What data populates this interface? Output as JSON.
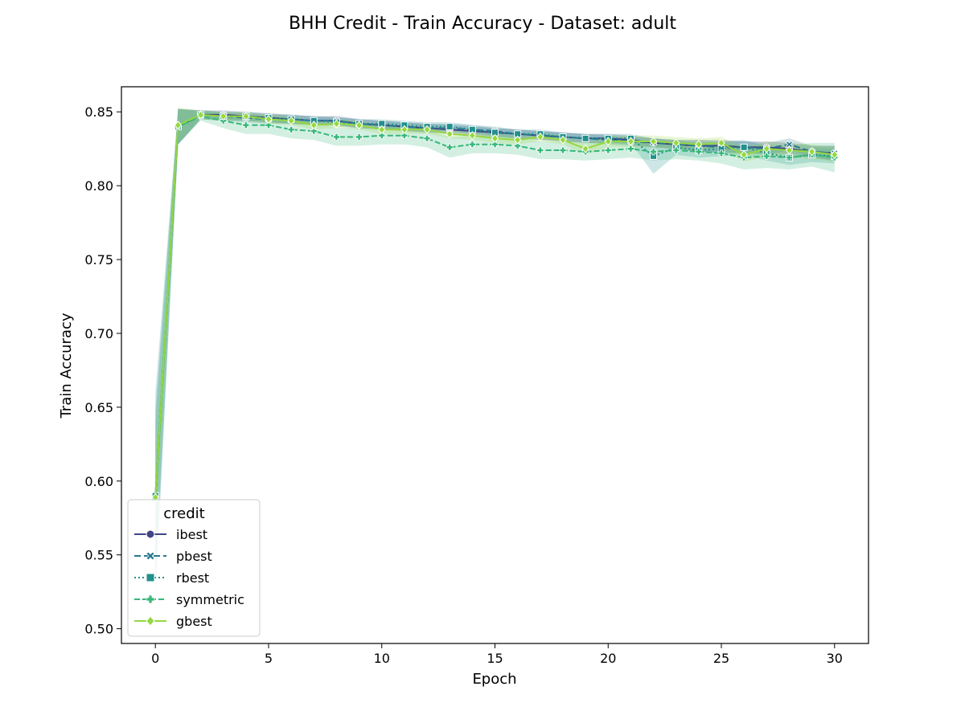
{
  "chart_data": {
    "type": "line",
    "title": "BHH Credit - Train Accuracy - Dataset: adult",
    "xlabel": "Epoch",
    "ylabel": "Train Accuracy",
    "xlim": [
      -1.5,
      31.5
    ],
    "ylim": [
      0.49,
      0.867
    ],
    "xticks": [
      0,
      5,
      10,
      15,
      20,
      25,
      30
    ],
    "yticks": [
      0.5,
      0.55,
      0.6,
      0.65,
      0.7,
      0.75,
      0.8,
      0.85
    ],
    "grid": false,
    "legend": {
      "title": "credit",
      "position": "lower-left"
    },
    "x": [
      0,
      1,
      2,
      3,
      4,
      5,
      6,
      7,
      8,
      9,
      10,
      11,
      12,
      13,
      14,
      15,
      16,
      17,
      18,
      19,
      20,
      21,
      22,
      23,
      24,
      25,
      26,
      27,
      28,
      29,
      30
    ],
    "series": [
      {
        "name": "ibest",
        "color": "#414487",
        "dash": "",
        "marker": "circle",
        "values": [
          0.589,
          0.84,
          0.848,
          0.848,
          0.847,
          0.846,
          0.845,
          0.844,
          0.844,
          0.842,
          0.841,
          0.84,
          0.839,
          0.838,
          0.837,
          0.836,
          0.835,
          0.834,
          0.833,
          0.832,
          0.832,
          0.831,
          0.829,
          0.828,
          0.827,
          0.827,
          0.826,
          0.826,
          0.825,
          0.823,
          0.822
        ],
        "band": [
          0.01,
          0.012,
          0.003,
          0.003,
          0.003,
          0.003,
          0.003,
          0.003,
          0.003,
          0.003,
          0.003,
          0.003,
          0.003,
          0.003,
          0.003,
          0.003,
          0.003,
          0.003,
          0.003,
          0.003,
          0.003,
          0.003,
          0.003,
          0.003,
          0.004,
          0.004,
          0.004,
          0.004,
          0.004,
          0.004,
          0.005
        ]
      },
      {
        "name": "pbest",
        "color": "#2a788e",
        "dash": "8,4",
        "marker": "x",
        "values": [
          0.588,
          0.84,
          0.848,
          0.847,
          0.846,
          0.845,
          0.845,
          0.844,
          0.844,
          0.842,
          0.841,
          0.84,
          0.839,
          0.839,
          0.838,
          0.837,
          0.835,
          0.834,
          0.833,
          0.832,
          0.831,
          0.83,
          0.829,
          0.828,
          0.827,
          0.826,
          0.826,
          0.825,
          0.828,
          0.823,
          0.822
        ],
        "band": [
          0.06,
          0.012,
          0.003,
          0.003,
          0.003,
          0.003,
          0.003,
          0.003,
          0.003,
          0.003,
          0.003,
          0.003,
          0.003,
          0.003,
          0.003,
          0.003,
          0.003,
          0.003,
          0.003,
          0.003,
          0.003,
          0.003,
          0.003,
          0.003,
          0.004,
          0.004,
          0.004,
          0.004,
          0.004,
          0.004,
          0.005
        ]
      },
      {
        "name": "rbest",
        "color": "#21918c",
        "dash": "2,3",
        "marker": "square",
        "values": [
          0.59,
          0.84,
          0.848,
          0.847,
          0.847,
          0.846,
          0.845,
          0.844,
          0.843,
          0.842,
          0.842,
          0.841,
          0.84,
          0.84,
          0.838,
          0.836,
          0.835,
          0.835,
          0.833,
          0.832,
          0.832,
          0.832,
          0.82,
          0.826,
          0.824,
          0.825,
          0.826,
          0.822,
          0.819,
          0.821,
          0.82
        ],
        "band": [
          0.07,
          0.012,
          0.003,
          0.003,
          0.003,
          0.003,
          0.003,
          0.003,
          0.003,
          0.003,
          0.003,
          0.003,
          0.003,
          0.003,
          0.003,
          0.003,
          0.003,
          0.003,
          0.003,
          0.003,
          0.003,
          0.003,
          0.012,
          0.005,
          0.005,
          0.005,
          0.005,
          0.005,
          0.005,
          0.005,
          0.005
        ]
      },
      {
        "name": "symmetric",
        "color": "#35b779",
        "dash": "7,3",
        "marker": "plus",
        "values": [
          0.588,
          0.84,
          0.847,
          0.844,
          0.841,
          0.841,
          0.838,
          0.837,
          0.833,
          0.833,
          0.834,
          0.834,
          0.832,
          0.826,
          0.828,
          0.828,
          0.827,
          0.824,
          0.824,
          0.823,
          0.824,
          0.825,
          0.823,
          0.824,
          0.823,
          0.822,
          0.819,
          0.82,
          0.819,
          0.821,
          0.819
        ],
        "band": [
          0.05,
          0.012,
          0.003,
          0.005,
          0.006,
          0.006,
          0.006,
          0.006,
          0.006,
          0.006,
          0.006,
          0.006,
          0.006,
          0.007,
          0.006,
          0.006,
          0.006,
          0.006,
          0.006,
          0.006,
          0.006,
          0.006,
          0.006,
          0.006,
          0.006,
          0.007,
          0.008,
          0.008,
          0.008,
          0.008,
          0.01
        ]
      },
      {
        "name": "gbest",
        "color": "#95d840",
        "dash": "",
        "marker": "diamond",
        "values": [
          0.589,
          0.841,
          0.848,
          0.847,
          0.847,
          0.845,
          0.844,
          0.841,
          0.842,
          0.841,
          0.838,
          0.838,
          0.838,
          0.835,
          0.834,
          0.832,
          0.831,
          0.833,
          0.831,
          0.825,
          0.83,
          0.83,
          0.83,
          0.829,
          0.828,
          0.829,
          0.821,
          0.825,
          0.824,
          0.823,
          0.821
        ],
        "band": [
          0.03,
          0.012,
          0.003,
          0.003,
          0.003,
          0.003,
          0.003,
          0.003,
          0.003,
          0.003,
          0.003,
          0.003,
          0.003,
          0.003,
          0.003,
          0.003,
          0.003,
          0.003,
          0.003,
          0.004,
          0.004,
          0.004,
          0.004,
          0.004,
          0.004,
          0.004,
          0.005,
          0.005,
          0.005,
          0.005,
          0.005
        ]
      }
    ]
  }
}
